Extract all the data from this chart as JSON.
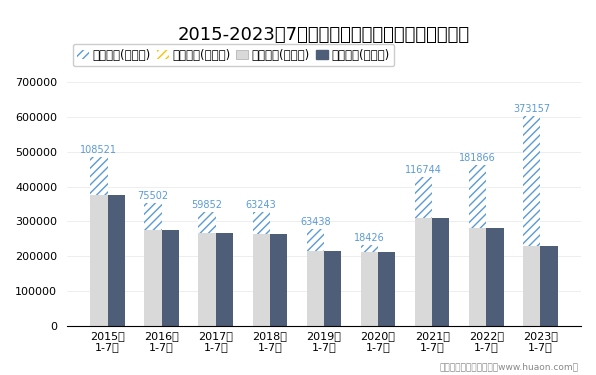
{
  "title": "2015-2023年7月河北省外商投资企业进出口差额图",
  "categories": [
    "2015年\n1-7月",
    "2016年\n1-7月",
    "2017年\n1-7月",
    "2018年\n1-7月",
    "2019年\n1-7月",
    "2020年\n1-7月",
    "2021年\n1-7月",
    "2022年\n1-7月",
    "2023年\n1-7月"
  ],
  "export_total": [
    484000,
    352000,
    328000,
    328000,
    278000,
    232000,
    427000,
    462000,
    602000
  ],
  "import_total": [
    375479,
    276498,
    268148,
    264757,
    214562,
    213574,
    310256,
    280134,
    228843
  ],
  "surplus": [
    108521,
    75502,
    59852,
    63243,
    63438,
    18426,
    116744,
    181866,
    373157
  ],
  "annotations": [
    108521,
    75502,
    59852,
    63243,
    63438,
    18426,
    116744,
    181866,
    373157
  ],
  "legend_labels": [
    "贸易顺差(万美元)",
    "贸易逆差(万美元)",
    "出口总额(万美元)",
    "进口总额(万美元)"
  ],
  "surplus_color": "#5b9bd5",
  "deficit_color": "#ffc000",
  "export_color": "#d9d9d9",
  "import_color": "#4e5d78",
  "annotation_color": "#5b9bd5",
  "ylim": [
    0,
    700000
  ],
  "yticks": [
    0,
    100000,
    200000,
    300000,
    400000,
    500000,
    600000,
    700000
  ],
  "footer": "制图：华经产业研究院（www.huaon.com）",
  "title_fontsize": 13,
  "tick_fontsize": 8,
  "legend_fontsize": 8.5
}
